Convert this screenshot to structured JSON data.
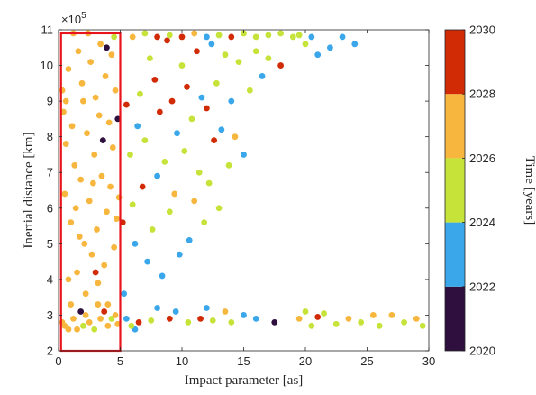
{
  "chart_data": {
    "type": "scatter",
    "xlabel": "Impact parameter [as]",
    "ylabel": "Inertial distance [km]",
    "y_exponent_label": "×10",
    "y_exponent_power": "5",
    "xlim": [
      0,
      30
    ],
    "ylim": [
      2,
      11
    ],
    "xticks": [
      0,
      5,
      10,
      15,
      20,
      25,
      30
    ],
    "yticks": [
      2,
      3,
      4,
      5,
      6,
      7,
      8,
      9,
      10,
      11
    ],
    "grid": false,
    "highlight_box": {
      "x": [
        0.2,
        5.0
      ],
      "y": [
        2.0,
        10.9
      ],
      "color": "#e8141c"
    },
    "colorbar": {
      "label": "Time [years]",
      "range": [
        2020,
        2030
      ],
      "ticks": [
        2020,
        2022,
        2024,
        2026,
        2028,
        2030
      ],
      "bands": [
        {
          "from": 2020,
          "to": 2022,
          "color": "#2f0f3d"
        },
        {
          "from": 2022,
          "to": 2024,
          "color": "#3aa7ea"
        },
        {
          "from": 2024,
          "to": 2026,
          "color": "#c6e33a"
        },
        {
          "from": 2026,
          "to": 2028,
          "color": "#f7b73e"
        },
        {
          "from": 2028,
          "to": 2030,
          "color": "#d12b06"
        }
      ]
    },
    "points": [
      [
        0.3,
        2.8,
        2027
      ],
      [
        0.5,
        2.7,
        2027
      ],
      [
        0.8,
        2.6,
        2027
      ],
      [
        1.2,
        2.9,
        2027
      ],
      [
        1.5,
        2.6,
        2027
      ],
      [
        1.8,
        3.1,
        2021
      ],
      [
        2.0,
        2.7,
        2025
      ],
      [
        2.2,
        3.0,
        2027
      ],
      [
        2.5,
        2.8,
        2027
      ],
      [
        2.9,
        2.6,
        2025
      ],
      [
        3.2,
        3.3,
        2027
      ],
      [
        3.4,
        2.9,
        2027
      ],
      [
        3.7,
        3.1,
        2029
      ],
      [
        4.0,
        2.7,
        2027
      ],
      [
        4.3,
        2.9,
        2025
      ],
      [
        4.6,
        3.0,
        2027
      ],
      [
        4.8,
        2.75,
        2027
      ],
      [
        0.3,
        9.3,
        2027
      ],
      [
        0.4,
        8.7,
        2027
      ],
      [
        0.6,
        7.8,
        2027
      ],
      [
        0.5,
        6.4,
        2027
      ],
      [
        0.8,
        9.9,
        2027
      ],
      [
        1.0,
        5.6,
        2027
      ],
      [
        1.1,
        8.3,
        2027
      ],
      [
        1.3,
        7.2,
        2027
      ],
      [
        1.5,
        4.2,
        2027
      ],
      [
        1.6,
        10.4,
        2027
      ],
      [
        1.8,
        6.8,
        2027
      ],
      [
        1.9,
        9.5,
        2027
      ],
      [
        2.1,
        5.0,
        2027
      ],
      [
        2.2,
        3.6,
        2027
      ],
      [
        2.3,
        8.1,
        2027
      ],
      [
        2.5,
        6.2,
        2027
      ],
      [
        2.6,
        10.1,
        2027
      ],
      [
        2.7,
        4.7,
        2027
      ],
      [
        2.9,
        7.5,
        2027
      ],
      [
        3.0,
        9.1,
        2027
      ],
      [
        3.1,
        5.4,
        2027
      ],
      [
        3.2,
        3.9,
        2027
      ],
      [
        3.3,
        8.6,
        2027
      ],
      [
        3.4,
        10.6,
        2027
      ],
      [
        3.5,
        6.9,
        2027
      ],
      [
        3.6,
        7.9,
        2021
      ],
      [
        3.7,
        4.4,
        2027
      ],
      [
        3.8,
        9.7,
        2027
      ],
      [
        3.9,
        5.9,
        2027
      ],
      [
        4.0,
        3.3,
        2027
      ],
      [
        4.1,
        8.4,
        2027
      ],
      [
        4.2,
        6.6,
        2027
      ],
      [
        4.3,
        10.3,
        2027
      ],
      [
        4.4,
        7.7,
        2027
      ],
      [
        4.5,
        4.9,
        2027
      ],
      [
        4.6,
        9.3,
        2027
      ],
      [
        4.7,
        5.7,
        2027
      ],
      [
        4.8,
        8.5,
        2021
      ],
      [
        4.9,
        6.3,
        2027
      ],
      [
        4.5,
        10.8,
        2025
      ],
      [
        3.9,
        10.5,
        2021
      ],
      [
        1.2,
        10.9,
        2027
      ],
      [
        2.4,
        10.9,
        2027
      ],
      [
        0.8,
        4.0,
        2027
      ],
      [
        1.4,
        6.0,
        2027
      ],
      [
        2.0,
        9.0,
        2027
      ],
      [
        1.0,
        3.3,
        2027
      ],
      [
        3.0,
        4.2,
        2029
      ],
      [
        1.7,
        5.2,
        2027
      ],
      [
        2.8,
        6.7,
        2027
      ],
      [
        0.6,
        9.0,
        2027
      ],
      [
        5.2,
        5.6,
        2029
      ],
      [
        5.3,
        3.6,
        2023
      ],
      [
        5.5,
        8.9,
        2029
      ],
      [
        5.8,
        7.5,
        2025
      ],
      [
        6.0,
        6.1,
        2025
      ],
      [
        6.2,
        5.0,
        2023
      ],
      [
        6.4,
        8.3,
        2023
      ],
      [
        6.6,
        9.2,
        2025
      ],
      [
        6.8,
        6.6,
        2029
      ],
      [
        7.0,
        7.9,
        2025
      ],
      [
        7.2,
        4.5,
        2023
      ],
      [
        7.4,
        10.2,
        2025
      ],
      [
        7.6,
        5.4,
        2025
      ],
      [
        7.8,
        9.6,
        2029
      ],
      [
        8.0,
        6.9,
        2023
      ],
      [
        8.2,
        8.7,
        2029
      ],
      [
        8.4,
        4.1,
        2023
      ],
      [
        8.6,
        7.3,
        2025
      ],
      [
        8.8,
        10.7,
        2029
      ],
      [
        9.0,
        5.9,
        2025
      ],
      [
        9.2,
        9.0,
        2029
      ],
      [
        9.4,
        6.4,
        2027
      ],
      [
        9.6,
        8.1,
        2023
      ],
      [
        9.8,
        4.7,
        2023
      ],
      [
        10.0,
        10.0,
        2025
      ],
      [
        10.2,
        7.6,
        2025
      ],
      [
        10.4,
        9.4,
        2029
      ],
      [
        10.6,
        5.1,
        2023
      ],
      [
        10.8,
        8.5,
        2025
      ],
      [
        11.0,
        6.2,
        2027
      ],
      [
        11.2,
        10.4,
        2029
      ],
      [
        11.4,
        7.0,
        2025
      ],
      [
        11.6,
        9.1,
        2023
      ],
      [
        11.8,
        5.6,
        2025
      ],
      [
        12.0,
        8.8,
        2029
      ],
      [
        12.2,
        6.7,
        2025
      ],
      [
        12.4,
        10.6,
        2023
      ],
      [
        12.6,
        7.9,
        2029
      ],
      [
        12.8,
        9.5,
        2025
      ],
      [
        13.0,
        6.0,
        2025
      ],
      [
        13.2,
        8.2,
        2023
      ],
      [
        13.5,
        10.3,
        2025
      ],
      [
        13.8,
        7.2,
        2025
      ],
      [
        14.0,
        9.0,
        2023
      ],
      [
        14.3,
        8.0,
        2027
      ],
      [
        14.6,
        10.1,
        2025
      ],
      [
        15.0,
        7.5,
        2023
      ],
      [
        15.5,
        9.3,
        2025
      ],
      [
        16.0,
        10.4,
        2025
      ],
      [
        16.5,
        9.7,
        2023
      ],
      [
        17.0,
        10.2,
        2025
      ],
      [
        18.0,
        10.0,
        2029
      ],
      [
        19.0,
        10.8,
        2025
      ],
      [
        20.0,
        10.6,
        2025
      ],
      [
        21.0,
        10.3,
        2023
      ],
      [
        22.0,
        10.5,
        2023
      ],
      [
        23.0,
        10.8,
        2023
      ],
      [
        24.0,
        10.6,
        2023
      ],
      [
        6.0,
        10.8,
        2027
      ],
      [
        7.0,
        10.9,
        2025
      ],
      [
        8.0,
        10.8,
        2029
      ],
      [
        9.0,
        10.85,
        2025
      ],
      [
        10.0,
        10.8,
        2029
      ],
      [
        11.0,
        10.9,
        2027
      ],
      [
        12.0,
        10.8,
        2023
      ],
      [
        13.0,
        10.85,
        2025
      ],
      [
        14.0,
        10.8,
        2029
      ],
      [
        15.0,
        10.9,
        2025
      ],
      [
        16.0,
        10.8,
        2025
      ],
      [
        17.0,
        10.85,
        2025
      ],
      [
        18.0,
        10.9,
        2025
      ],
      [
        19.5,
        10.85,
        2025
      ],
      [
        20.5,
        10.8,
        2023
      ],
      [
        5.5,
        2.9,
        2023
      ],
      [
        6.5,
        2.8,
        2029
      ],
      [
        7.5,
        2.85,
        2025
      ],
      [
        8.0,
        3.2,
        2023
      ],
      [
        9.0,
        2.9,
        2029
      ],
      [
        9.5,
        3.1,
        2023
      ],
      [
        10.5,
        2.8,
        2025
      ],
      [
        11.5,
        2.9,
        2029
      ],
      [
        12.0,
        3.2,
        2023
      ],
      [
        12.5,
        2.85,
        2025
      ],
      [
        13.5,
        3.1,
        2027
      ],
      [
        14.0,
        2.8,
        2025
      ],
      [
        15.0,
        3.0,
        2023
      ],
      [
        16.0,
        2.9,
        2023
      ],
      [
        17.5,
        2.8,
        2021
      ],
      [
        19.5,
        2.9,
        2027
      ],
      [
        20.0,
        3.1,
        2025
      ],
      [
        20.5,
        2.7,
        2025
      ],
      [
        21.0,
        2.95,
        2029
      ],
      [
        21.5,
        3.05,
        2025
      ],
      [
        22.5,
        2.75,
        2025
      ],
      [
        23.5,
        2.9,
        2027
      ],
      [
        24.5,
        2.8,
        2025
      ],
      [
        25.5,
        3.0,
        2027
      ],
      [
        26.0,
        2.7,
        2025
      ],
      [
        27.0,
        3.0,
        2027
      ],
      [
        28.0,
        2.8,
        2025
      ],
      [
        29.0,
        2.9,
        2027
      ],
      [
        29.5,
        2.7,
        2025
      ],
      [
        6.2,
        2.6,
        2023
      ],
      [
        5.9,
        2.7,
        2025
      ]
    ]
  }
}
